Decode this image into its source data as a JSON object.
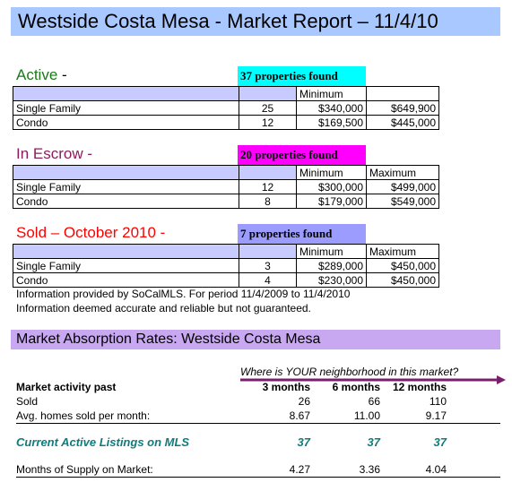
{
  "title": "Westside Costa Mesa - Market Report – 11/4/10",
  "active": {
    "label_prefix": "Active",
    "label_suffix": " -",
    "found": "37 properties found",
    "headers": [
      "",
      "",
      "Minimum",
      ""
    ],
    "rows": [
      {
        "type": "Single Family",
        "count": "25",
        "min": "$340,000",
        "max": "$649,900"
      },
      {
        "type": "Condo",
        "count": "12",
        "min": "$169,500",
        "max": "$445,000"
      }
    ]
  },
  "escrow": {
    "label": "In Escrow -",
    "found": "20 properties found",
    "headers": [
      "",
      "",
      "Minimum",
      "Maximum"
    ],
    "rows": [
      {
        "type": "Single Family",
        "count": "12",
        "min": "$300,000",
        "max": "$499,000"
      },
      {
        "type": "Condo",
        "count": "8",
        "min": "$179,000",
        "max": "$549,000"
      }
    ]
  },
  "sold": {
    "label": "Sold – October 2010 -",
    "found": "7 properties found",
    "headers": [
      "",
      "",
      "Minimum",
      "Maximum"
    ],
    "rows": [
      {
        "type": "Single Family",
        "count": "3",
        "min": "$289,000",
        "max": "$450,000"
      },
      {
        "type": "Condo",
        "count": "4",
        "min": "$230,000",
        "max": "$450,000"
      }
    ]
  },
  "info_line1": "Information provided by SoCalMLS.  For period 11/4/2009 to 11/4/2010",
  "info_line2": "Information deemed accurate and reliable but not guaranteed.",
  "absorption": {
    "title": "Market Absorption Rates:  Westside Costa Mesa",
    "question": "Where is YOUR neighborhood in this market?",
    "activity_label": "Market activity past",
    "periods": [
      "3 months",
      "6 months",
      "12 months"
    ],
    "sold_label": "Sold",
    "sold": [
      "26",
      "66",
      "110"
    ],
    "avg_label": "Avg. homes sold per month:",
    "avg": [
      "8.67",
      "11.00",
      "9.17"
    ],
    "listings_label": "Current Active Listings on MLS",
    "listings": [
      "37",
      "37",
      "37"
    ],
    "supply_label": "Months of Supply on Market:",
    "supply": [
      "4.27",
      "3.36",
      "4.04"
    ]
  },
  "colors": {
    "title_bg": "#a9c8ff",
    "active_label": "#1a7a1a",
    "active_badge": "#00ffff",
    "escrow_label": "#8b1c5c",
    "escrow_badge": "#ff00ff",
    "sold_label": "#ff0000",
    "sold_badge": "#9c9cff",
    "header_row": "#c7cbff",
    "absorption_bg": "#c9a8f2",
    "arrow": "#7b1c6c"
  }
}
